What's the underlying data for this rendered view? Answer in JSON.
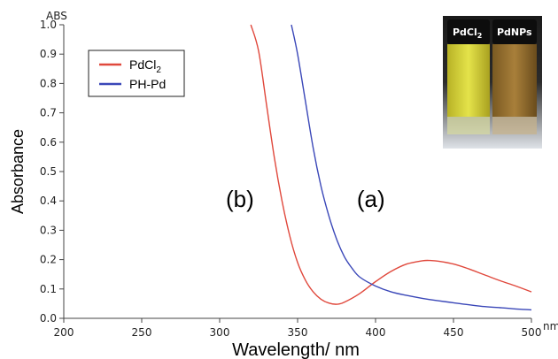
{
  "chart_data": {
    "type": "line",
    "xlabel": "Wavelength/ nm",
    "ylabel": "Absorbance",
    "x_unit_label": "nm",
    "y_unit_label": "ABS",
    "xlim": [
      200,
      500
    ],
    "ylim": [
      0,
      1.0
    ],
    "x_ticks": [
      "200",
      "250",
      "300",
      "350",
      "400",
      "450",
      "500"
    ],
    "y_ticks": [
      "0.0",
      "0.1",
      "0.2",
      "0.3",
      "0.4",
      "0.5",
      "0.6",
      "0.7",
      "0.8",
      "0.9",
      "1.0"
    ],
    "grid": false,
    "legend_position": "top-left",
    "series": [
      {
        "name": "PdCl2",
        "legend_main": "PdCl",
        "legend_sub": "2",
        "color": "#e0483c",
        "x": [
          320,
          325,
          330,
          335,
          340,
          345,
          350,
          355,
          360,
          365,
          370,
          375,
          380,
          390,
          400,
          410,
          420,
          430,
          435,
          440,
          450,
          460,
          470,
          480,
          490,
          500
        ],
        "y": [
          1.0,
          0.91,
          0.73,
          0.55,
          0.4,
          0.28,
          0.19,
          0.13,
          0.09,
          0.065,
          0.052,
          0.048,
          0.055,
          0.085,
          0.125,
          0.16,
          0.185,
          0.196,
          0.197,
          0.195,
          0.185,
          0.168,
          0.148,
          0.128,
          0.11,
          0.09
        ]
      },
      {
        "name": "PH-Pd",
        "legend_main": "PH-Pd",
        "legend_sub": "",
        "color": "#3a47b8",
        "x": [
          346,
          350,
          355,
          360,
          365,
          370,
          375,
          380,
          385,
          390,
          400,
          410,
          420,
          430,
          440,
          450,
          460,
          470,
          480,
          490,
          500
        ],
        "y": [
          1.0,
          0.9,
          0.74,
          0.58,
          0.45,
          0.35,
          0.27,
          0.21,
          0.17,
          0.14,
          0.11,
          0.09,
          0.078,
          0.068,
          0.06,
          0.053,
          0.046,
          0.04,
          0.036,
          0.032,
          0.029
        ]
      }
    ],
    "annotations": [
      {
        "text": "(b)",
        "x": 313,
        "y": 0.38
      },
      {
        "text": "(a)",
        "x": 397,
        "y": 0.38
      }
    ],
    "inset_photo": {
      "labels": [
        {
          "main": "PdCl",
          "sub": "2"
        },
        {
          "main": "PdNPs",
          "sub": ""
        }
      ]
    }
  }
}
